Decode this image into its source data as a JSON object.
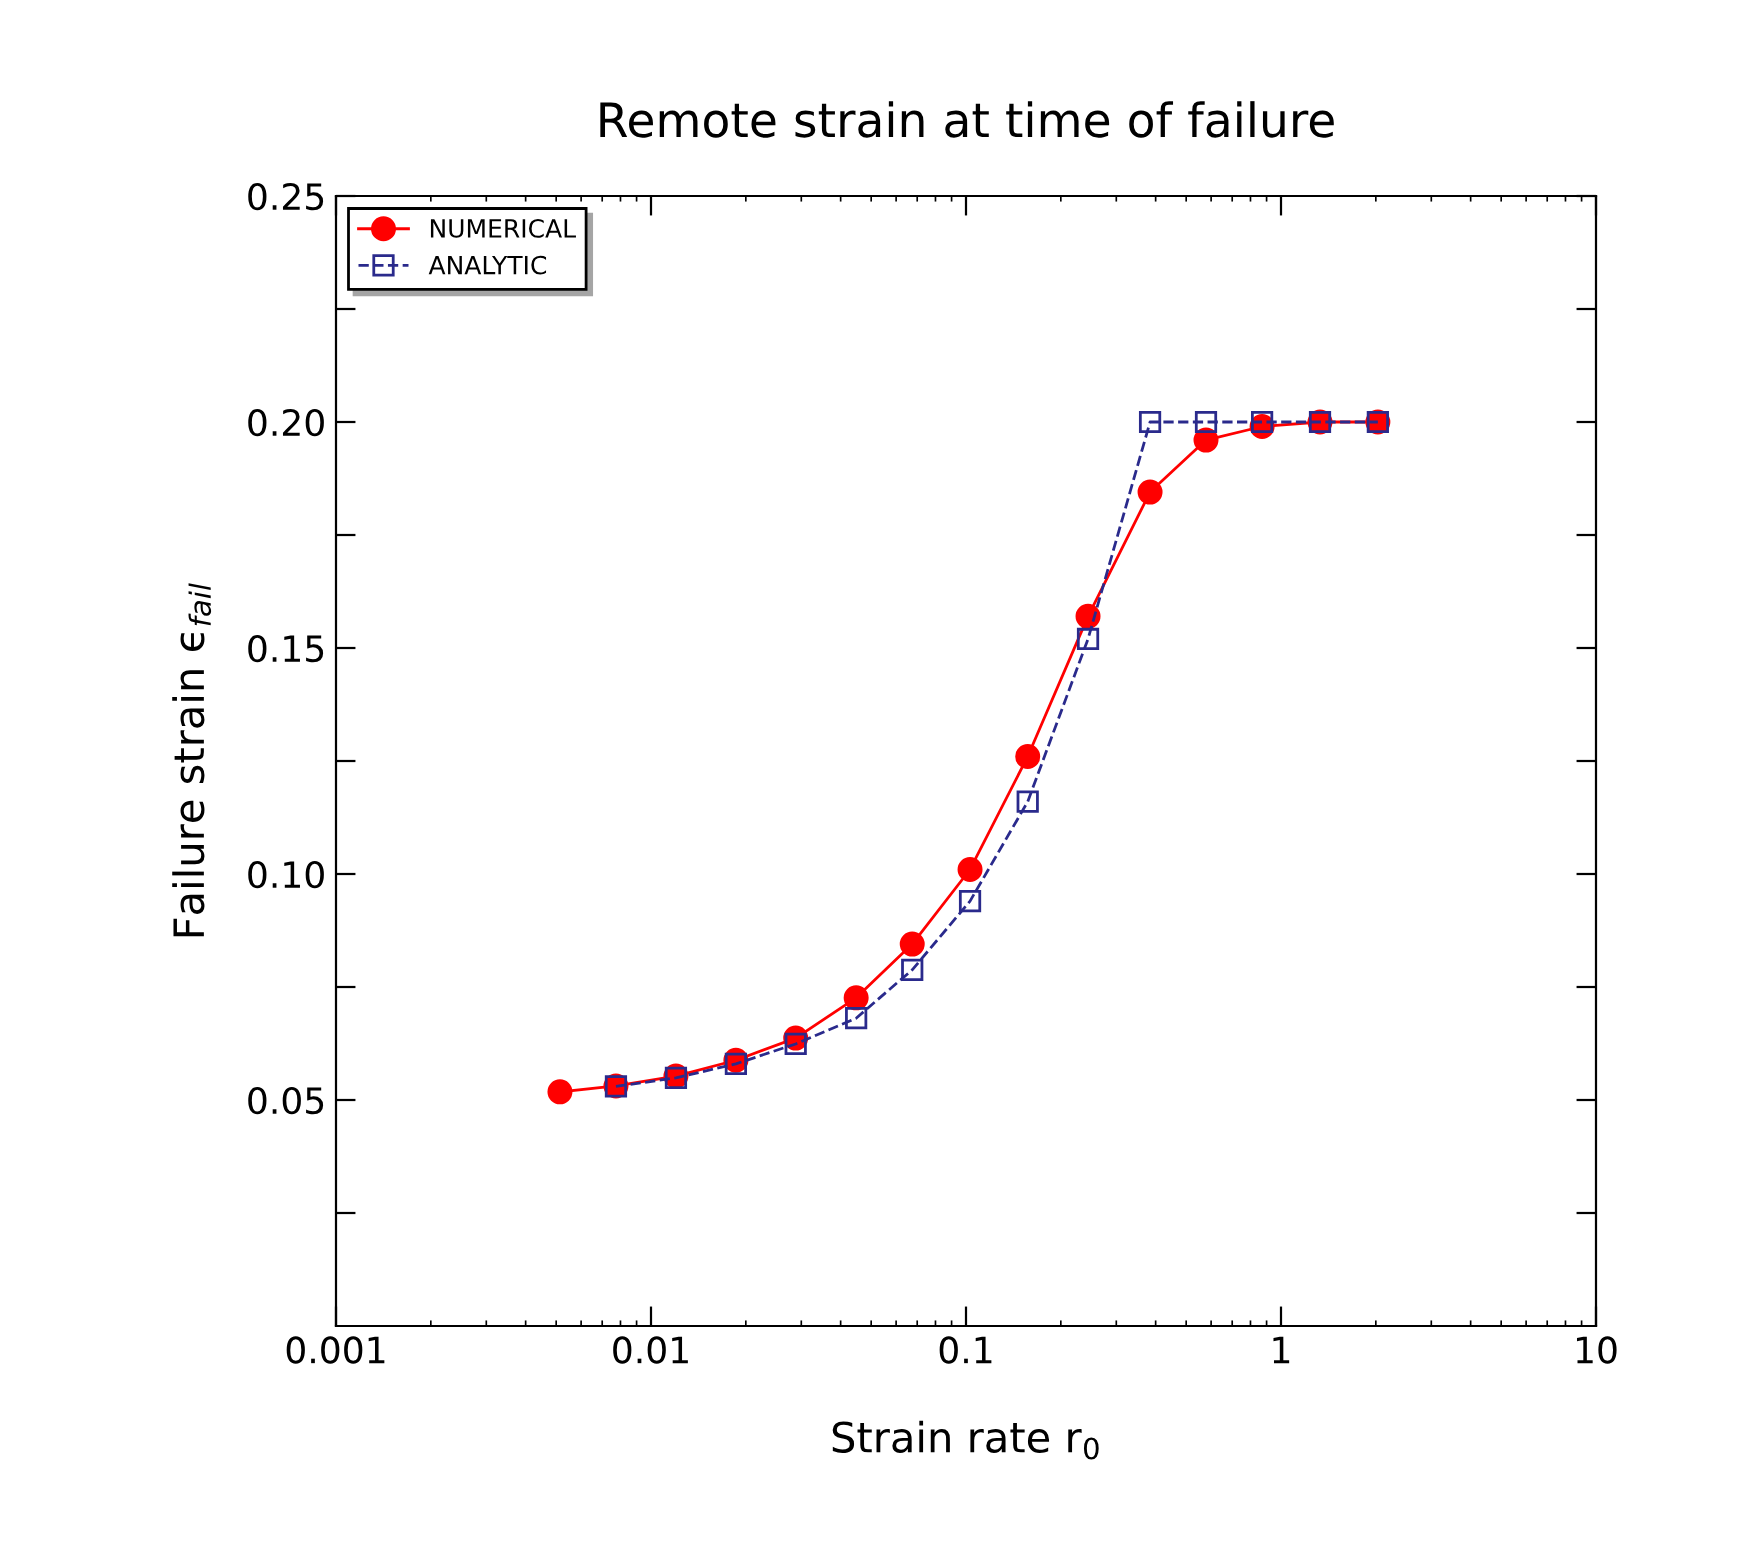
{
  "chart_data": {
    "type": "line",
    "title": "Remote strain at time of failure",
    "xlabel": "Strain rate r$_{0}$",
    "ylabel": "Failure strain ϵ$_{fail}$",
    "log": "x",
    "xlim": [
      0.001,
      10
    ],
    "xticks": [
      0.001,
      0.01,
      0.1,
      1,
      10
    ],
    "ylim": [
      0,
      0.25
    ],
    "yticks": [
      {
        "value": 0.025,
        "label": null
      },
      0.05,
      {
        "value": 0.075,
        "label": null
      },
      "0.10",
      {
        "value": 0.125,
        "label": null
      },
      0.15,
      {
        "value": 0.175,
        "label": null
      },
      "0.20",
      {
        "value": 0.225,
        "label": null
      },
      0.25
    ],
    "grid": false,
    "legend": "top left",
    "series": [
      {
        "name": "NUMERICAL",
        "color": "#ff0000",
        "marker": "circle",
        "line_style": "solid",
        "x": [
          0.00514,
          0.00774,
          0.012,
          0.0186,
          0.0288,
          0.0448,
          0.0675,
          0.103,
          0.157,
          0.244,
          0.384,
          0.578,
          0.871,
          1.33,
          2.03
        ],
        "values": [
          0.0518,
          0.0531,
          0.0553,
          0.0588,
          0.0637,
          0.0726,
          0.0845,
          0.101,
          0.126,
          0.157,
          0.1845,
          0.196,
          0.199,
          0.2,
          0.2
        ]
      },
      {
        "name": "ANALYTIC",
        "color": "#2a2a8c",
        "marker": "square",
        "line_style": "dashed",
        "x": [
          0.00774,
          0.012,
          0.0186,
          0.0288,
          0.0448,
          0.0675,
          0.103,
          0.157,
          0.244,
          0.384,
          0.578,
          0.871,
          1.33,
          2.03
        ],
        "values": [
          0.053,
          0.0549,
          0.058,
          0.0624,
          0.0681,
          0.0788,
          0.094,
          0.116,
          0.152,
          0.2,
          0.2,
          0.2,
          0.2,
          0.2
        ]
      }
    ]
  }
}
